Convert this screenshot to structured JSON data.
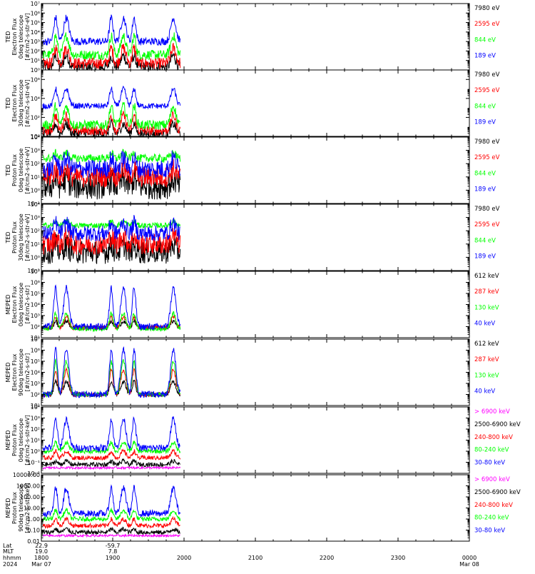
{
  "colors": {
    "black": "#000000",
    "red": "#ff0000",
    "green": "#00ff00",
    "blue": "#0000ff",
    "magenta": "#ff00ff",
    "axis": "#000000",
    "background": "#ffffff"
  },
  "time_axis": {
    "row_labels": [
      "Lat",
      "MLT",
      "hhmm",
      "2024"
    ],
    "ticks": [
      {
        "hhmm": "1800",
        "date": "Mar 07",
        "lat": "22.9",
        "mlt": "19.0"
      },
      {
        "hhmm": "1900",
        "date": "",
        "lat": "-59.7",
        "mlt": "7.8"
      },
      {
        "hhmm": "2000",
        "date": "",
        "lat": "",
        "mlt": ""
      },
      {
        "hhmm": "2100",
        "date": "",
        "lat": "",
        "mlt": ""
      },
      {
        "hhmm": "2200",
        "date": "",
        "lat": "",
        "mlt": ""
      },
      {
        "hhmm": "2300",
        "date": "",
        "lat": "",
        "mlt": ""
      },
      {
        "hhmm": "0000",
        "date": "Mar 08",
        "lat": "",
        "mlt": ""
      }
    ],
    "x_range_hours": [
      18,
      24
    ],
    "data_end_hour": 19.95
  },
  "chart_data": [
    {
      "type": "line",
      "ylabel": [
        "TED",
        "Electron Flux",
        "0deg telescope",
        "[#/cm2-s-str-eV]"
      ],
      "log": true,
      "ylim_exp": [
        0,
        7
      ],
      "tick_labels": [
        "10⁰",
        "10¹",
        "10²",
        "10³",
        "10⁴",
        "10⁵",
        "10⁶",
        "10⁷"
      ],
      "tick_exps": [
        0,
        1,
        2,
        3,
        4,
        5,
        6,
        7
      ],
      "series": [
        {
          "name": "7980 eV",
          "color": "#000000",
          "base": 0.3,
          "noise": 0.6,
          "peak": 1.2
        },
        {
          "name": "2595 eV",
          "color": "#ff0000",
          "base": 0.7,
          "noise": 0.6,
          "peak": 1.6
        },
        {
          "name": "844 eV",
          "color": "#00ff00",
          "base": 1.6,
          "noise": 0.5,
          "peak": 2.0
        },
        {
          "name": "189 eV",
          "color": "#0000ff",
          "base": 3.0,
          "noise": 0.4,
          "peak": 2.5
        }
      ]
    },
    {
      "type": "line",
      "ylabel": [
        "TED",
        "Electron Flux",
        "30deg telescope",
        "[#/cm2-s-str-eV]"
      ],
      "log": true,
      "ylim_exp": [
        0,
        7
      ],
      "tick_labels": [
        "10⁰",
        "10²",
        "10⁴",
        "10⁶"
      ],
      "tick_exps": [
        0,
        2,
        4,
        6
      ],
      "series": [
        {
          "name": "7980 eV",
          "color": "#000000",
          "base": 0.3,
          "noise": 0.5,
          "peak": 1.0
        },
        {
          "name": "2595 eV",
          "color": "#ff0000",
          "base": 0.6,
          "noise": 0.5,
          "peak": 1.6
        },
        {
          "name": "844 eV",
          "color": "#00ff00",
          "base": 1.2,
          "noise": 0.5,
          "peak": 2.0
        },
        {
          "name": "189 eV",
          "color": "#0000ff",
          "base": 3.2,
          "noise": 0.3,
          "peak": 1.8
        }
      ]
    },
    {
      "type": "line",
      "ylabel": [
        "TED",
        "Proton Flux",
        "0deg telescope",
        "[#/cm2-s-str-eV]"
      ],
      "log": true,
      "ylim_exp": [
        -1,
        4
      ],
      "tick_labels": [
        "10⁻¹",
        "10⁰",
        "10¹",
        "10²",
        "10³",
        "10⁴"
      ],
      "tick_exps": [
        -1,
        0,
        1,
        2,
        3,
        4
      ],
      "series": [
        {
          "name": "7980 eV",
          "color": "#000000",
          "base": 0.3,
          "noise": 1.0,
          "peak": 0.5
        },
        {
          "name": "2595 eV",
          "color": "#ff0000",
          "base": 1.0,
          "noise": 0.8,
          "peak": 0.6
        },
        {
          "name": "844 eV",
          "color": "#00ff00",
          "base": 2.4,
          "noise": 0.3,
          "peak": 0.4
        },
        {
          "name": "189 eV",
          "color": "#0000ff",
          "base": 1.6,
          "noise": 0.7,
          "peak": 0.8
        }
      ]
    },
    {
      "type": "line",
      "ylabel": [
        "TED",
        "Proton Flux",
        "30deg telescope",
        "[#/cm2-s-str-eV]"
      ],
      "log": true,
      "ylim_exp": [
        -1,
        4
      ],
      "tick_labels": [
        "10⁻¹",
        "10⁰",
        "10¹",
        "10²",
        "10³",
        "10⁴"
      ],
      "tick_exps": [
        -1,
        0,
        1,
        2,
        3,
        4
      ],
      "series": [
        {
          "name": "7980 eV",
          "color": "#000000",
          "base": 0.4,
          "noise": 0.9,
          "peak": 0.5
        },
        {
          "name": "2595 eV",
          "color": "#ff0000",
          "base": 1.0,
          "noise": 0.8,
          "peak": 0.6
        },
        {
          "name": "844 eV",
          "color": "#00ff00",
          "base": 2.4,
          "noise": 0.2,
          "peak": 0.3
        },
        {
          "name": "189 eV",
          "color": "#0000ff",
          "base": 1.8,
          "noise": 0.6,
          "peak": 0.8
        }
      ]
    },
    {
      "type": "line",
      "ylabel": [
        "MEPED",
        "Electron Flux",
        "0deg telescope",
        "[#/cm2-s-str]"
      ],
      "log": true,
      "ylim_exp": [
        1,
        7
      ],
      "tick_labels": [
        "10¹",
        "10²",
        "10³",
        "10⁴",
        "10⁵",
        "10⁶",
        "10⁷"
      ],
      "tick_exps": [
        1,
        2,
        3,
        4,
        5,
        6,
        7
      ],
      "series": [
        {
          "name": "612 keV",
          "color": "#000000",
          "base": 1.9,
          "noise": 0.2,
          "peak": 0.6
        },
        {
          "name": "287 keV",
          "color": "#ff0000",
          "base": 1.9,
          "noise": 0.2,
          "peak": 1.0
        },
        {
          "name": "130 keV",
          "color": "#00ff00",
          "base": 1.8,
          "noise": 0.2,
          "peak": 1.4
        },
        {
          "name": "40 keV",
          "color": "#0000ff",
          "base": 2.0,
          "noise": 0.3,
          "peak": 3.5
        }
      ]
    },
    {
      "type": "line",
      "ylabel": [
        "MEPED",
        "Electron Flux",
        "90deg telescope",
        "[#/cm2-s-str]"
      ],
      "log": true,
      "ylim_exp": [
        1,
        7
      ],
      "tick_labels": [
        "10¹",
        "10²",
        "10³",
        "10⁴",
        "10⁵",
        "10⁶",
        "10⁷"
      ],
      "tick_exps": [
        1,
        2,
        3,
        4,
        5,
        6,
        7
      ],
      "series": [
        {
          "name": "612 keV",
          "color": "#000000",
          "base": 2.0,
          "noise": 0.2,
          "peak": 1.2
        },
        {
          "name": "287 keV",
          "color": "#ff0000",
          "base": 2.0,
          "noise": 0.2,
          "peak": 2.2
        },
        {
          "name": "130 keV",
          "color": "#00ff00",
          "base": 2.0,
          "noise": 0.2,
          "peak": 3.0
        },
        {
          "name": "40 keV",
          "color": "#0000ff",
          "base": 2.0,
          "noise": 0.3,
          "peak": 4.0
        }
      ]
    },
    {
      "type": "line",
      "ylabel": [
        "MEPED",
        "Proton Flux",
        "0deg telescope",
        "[#/cm2-s-str-keV]"
      ],
      "log": true,
      "ylim_exp": [
        -2,
        4
      ],
      "tick_labels": [
        "10⁻²",
        "10⁻¹",
        "10⁰",
        "10¹",
        "10²",
        "10³",
        "10⁴"
      ],
      "tick_exps": [
        -2,
        -1,
        0,
        1,
        2,
        3,
        4
      ],
      "series": [
        {
          "name": "> 6900 keV",
          "color": "#ff00ff",
          "base": -1.5,
          "noise": 0.1,
          "peak": 0.0
        },
        {
          "name": "2500-6900 keV",
          "color": "#000000",
          "base": -1.2,
          "noise": 0.2,
          "peak": 0.3
        },
        {
          "name": "240-800 keV",
          "color": "#ff0000",
          "base": -0.6,
          "noise": 0.2,
          "peak": 0.6
        },
        {
          "name": "80-240 keV",
          "color": "#00ff00",
          "base": 0.0,
          "noise": 0.2,
          "peak": 0.8
        },
        {
          "name": "30-80 keV",
          "color": "#0000ff",
          "base": 0.3,
          "noise": 0.3,
          "peak": 2.6
        }
      ]
    },
    {
      "type": "line",
      "ylabel": [
        "MEPED",
        "Proton Flux",
        "90deg telescope",
        "[#/cm2-s-str-keV]"
      ],
      "log": true,
      "ylim_exp": [
        -2,
        4
      ],
      "tick_labels": [
        "0.01",
        "0.10",
        "1.00",
        "10.00",
        "100.00",
        "1000.00",
        "10000.00"
      ],
      "tick_exps": [
        -2,
        -1,
        0,
        1,
        2,
        3,
        4
      ],
      "series": [
        {
          "name": "> 6900 keV",
          "color": "#ff00ff",
          "base": -1.5,
          "noise": 0.1,
          "peak": 0.0
        },
        {
          "name": "2500-6900 keV",
          "color": "#000000",
          "base": -1.2,
          "noise": 0.2,
          "peak": 0.3
        },
        {
          "name": "240-800 keV",
          "color": "#ff0000",
          "base": -0.6,
          "noise": 0.2,
          "peak": 0.6
        },
        {
          "name": "80-240 keV",
          "color": "#00ff00",
          "base": 0.0,
          "noise": 0.2,
          "peak": 0.8
        },
        {
          "name": "30-80 keV",
          "color": "#0000ff",
          "base": 0.5,
          "noise": 0.3,
          "peak": 2.3
        }
      ]
    }
  ]
}
